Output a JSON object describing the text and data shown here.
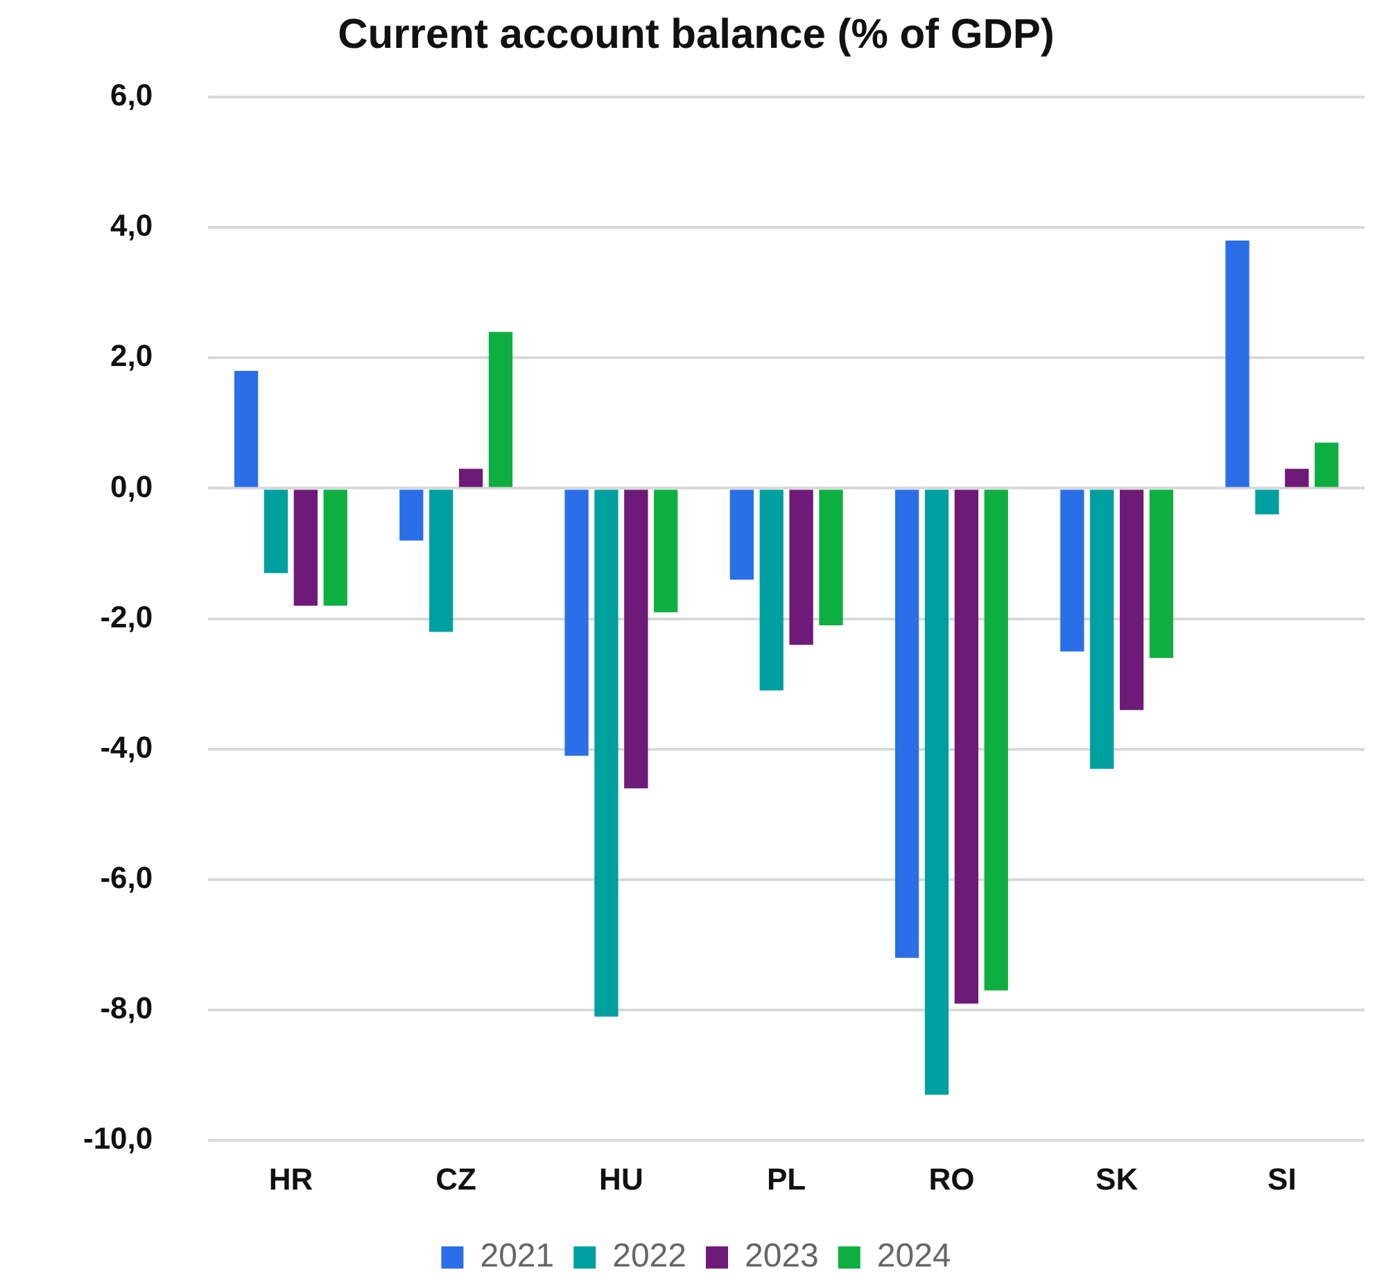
{
  "chart_data": {
    "type": "bar",
    "title": "Current account balance (% of GDP)",
    "categories": [
      "HR",
      "CZ",
      "HU",
      "PL",
      "RO",
      "SK",
      "SI"
    ],
    "series": [
      {
        "name": "2021",
        "color": "#2a6fe8",
        "values": [
          1.8,
          -0.8,
          -4.1,
          -1.4,
          -7.2,
          -2.5,
          3.8
        ]
      },
      {
        "name": "2022",
        "color": "#00a0a0",
        "values": [
          -1.3,
          -2.2,
          -8.1,
          -3.1,
          -9.3,
          -4.3,
          -0.4
        ]
      },
      {
        "name": "2023",
        "color": "#6e1a78",
        "values": [
          -1.8,
          0.3,
          -4.6,
          -2.4,
          -7.9,
          -3.4,
          0.3
        ]
      },
      {
        "name": "2024",
        "color": "#0db040",
        "values": [
          -1.8,
          2.4,
          -1.9,
          -2.1,
          -7.7,
          -2.6,
          0.7
        ]
      }
    ],
    "ylim": [
      -10,
      6
    ],
    "yticks": [
      {
        "value": -10,
        "label": "-10,0"
      },
      {
        "value": -8,
        "label": "-8,0"
      },
      {
        "value": -6,
        "label": "-6,0"
      },
      {
        "value": -4,
        "label": "-4,0"
      },
      {
        "value": -2,
        "label": "-2,0"
      },
      {
        "value": 0,
        "label": "0,0"
      },
      {
        "value": 2,
        "label": "2,0"
      },
      {
        "value": 4,
        "label": "4,0"
      },
      {
        "value": 6,
        "label": "6,0"
      }
    ],
    "grid": "y",
    "legend": "bottom"
  }
}
